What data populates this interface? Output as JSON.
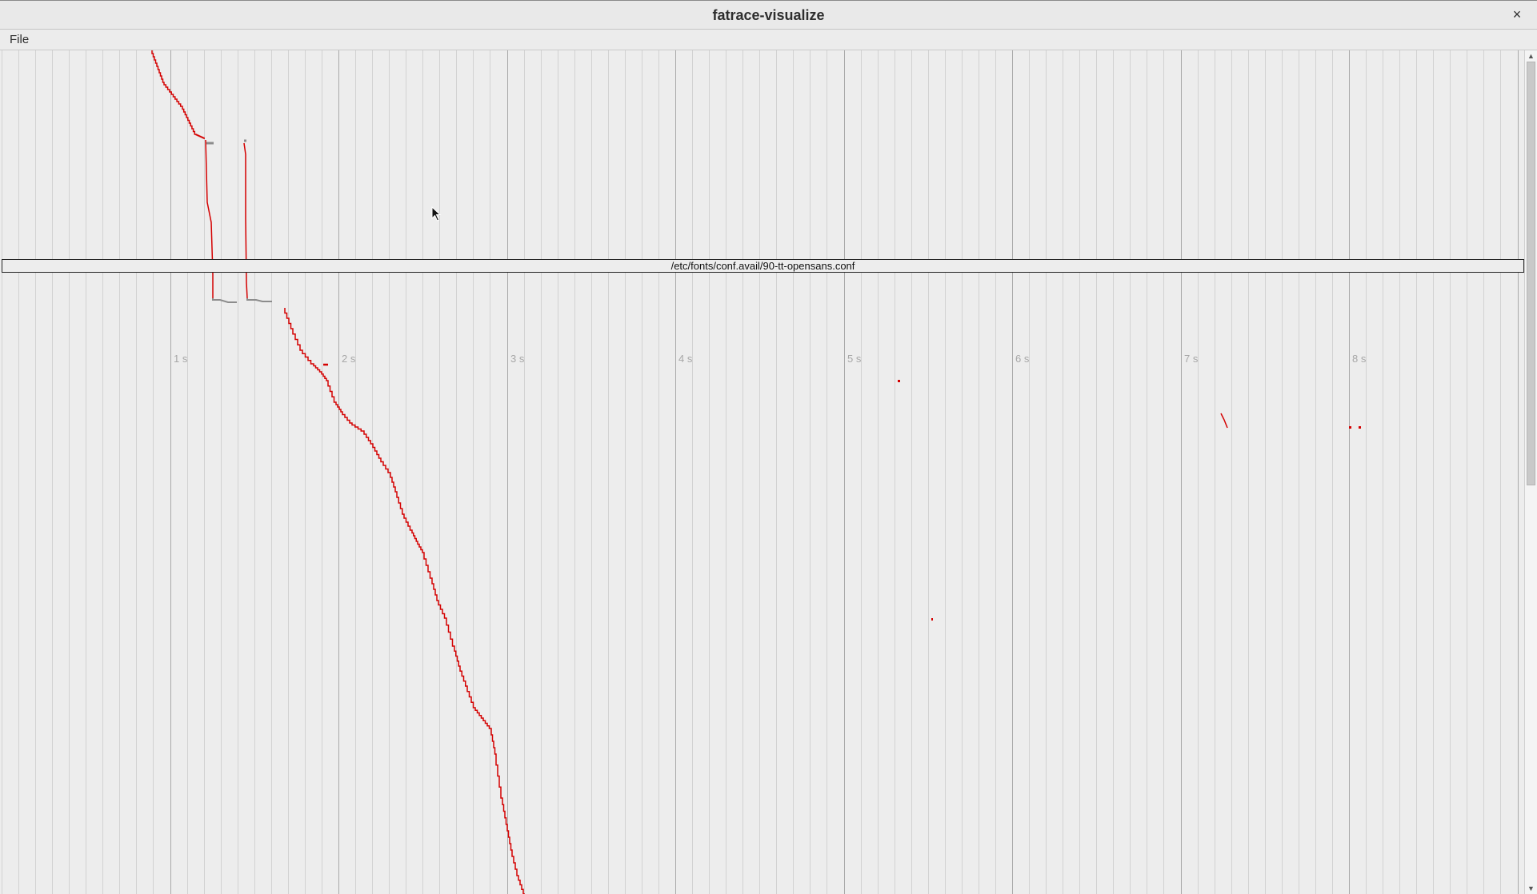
{
  "window": {
    "title": "fatrace-visualize",
    "close_glyph": "×"
  },
  "menu": {
    "file_label": "File"
  },
  "timeline": {
    "tick_labels": [
      "1 s",
      "2 s",
      "3 s",
      "4 s",
      "5 s",
      "6 s",
      "7 s",
      "8 s"
    ],
    "hover_path": "/etc/fonts/conf.avail/90-tt-opensans.conf",
    "colors": {
      "event": "#d40000",
      "held_open": "#8c8c8c",
      "grid_minor": "#d2d2d2",
      "grid_major": "#a9a9a9"
    }
  },
  "scrollbar": {
    "up_glyph": "▲",
    "down_glyph": "▼"
  }
}
